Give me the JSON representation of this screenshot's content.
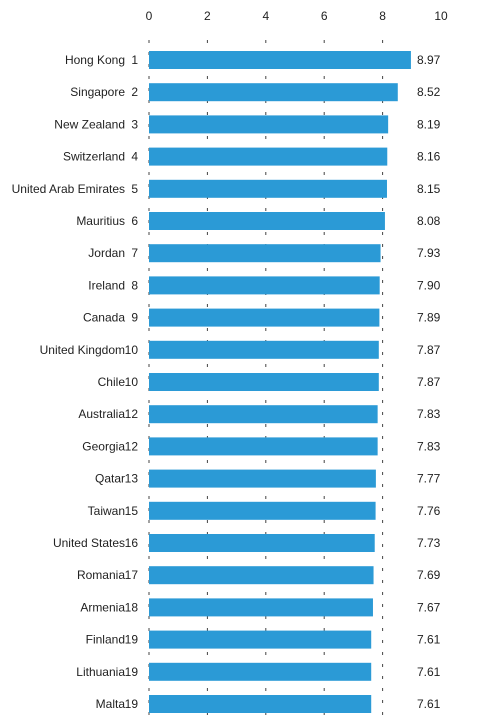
{
  "chart_data": {
    "type": "bar",
    "orientation": "horizontal",
    "title": "",
    "xlabel": "",
    "ylabel": "",
    "xlim": [
      0,
      10
    ],
    "x_ticks": [
      0,
      2,
      4,
      6,
      8,
      10
    ],
    "x_tick_labels": [
      "0",
      "2",
      "4",
      "6",
      "8",
      "10"
    ],
    "grid": "vertical dashed lines",
    "bar_color": "#2b9ad6",
    "categories": [
      "Hong Kong",
      "Singapore",
      "New Zealand",
      "Switzerland",
      "United Arab Emirates",
      "Mauritius",
      "Jordan",
      "Ireland",
      "Canada",
      "United Kingdom",
      "Chile",
      "Australia",
      "Georgia",
      "Qatar",
      "Taiwan",
      "United States",
      "Romania",
      "Armenia",
      "Finland",
      "Lithuania",
      "Malta"
    ],
    "ranks": [
      "1",
      "2",
      "3",
      "4",
      "5",
      "6",
      "7",
      "8",
      "9",
      "10",
      "10",
      "12",
      "12",
      "13",
      "15",
      "16",
      "17",
      "18",
      "19",
      "19",
      "19"
    ],
    "values": [
      8.97,
      8.52,
      8.19,
      8.16,
      8.15,
      8.08,
      7.93,
      7.9,
      7.89,
      7.87,
      7.87,
      7.83,
      7.83,
      7.77,
      7.76,
      7.73,
      7.69,
      7.67,
      7.61,
      7.61,
      7.61
    ],
    "value_labels": [
      "8.97",
      "8.52",
      "8.19",
      "8.16",
      "8.15",
      "8.08",
      "7.93",
      "7.90",
      "7.89",
      "7.87",
      "7.87",
      "7.83",
      "7.83",
      "7.77",
      "7.76",
      "7.73",
      "7.69",
      "7.67",
      "7.61",
      "7.61",
      "7.61"
    ]
  }
}
